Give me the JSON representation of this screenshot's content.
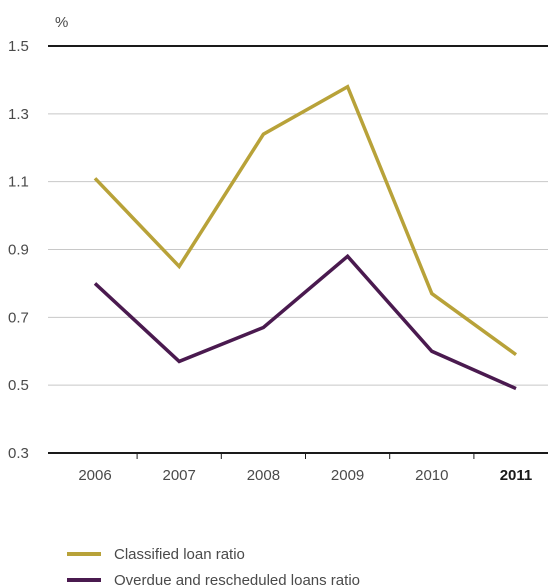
{
  "chart_data": {
    "type": "line",
    "unit_label": "%",
    "categories": [
      "2006",
      "2007",
      "2008",
      "2009",
      "2010",
      "2011"
    ],
    "highlight_category": "2011",
    "y_ticks": [
      "0.3",
      "0.5",
      "0.7",
      "0.9",
      "1.1",
      "1.3",
      "1.5"
    ],
    "ylim": [
      0.3,
      1.5
    ],
    "grid": true,
    "legend_position": "bottom-left",
    "series": [
      {
        "name": "Classified loan ratio",
        "color": "#b8a239",
        "values": [
          1.11,
          0.85,
          1.24,
          1.38,
          0.77,
          0.59
        ]
      },
      {
        "name": "Overdue and rescheduled loans ratio",
        "color": "#4a1a4f",
        "values": [
          0.8,
          0.57,
          0.67,
          0.88,
          0.6,
          0.49
        ]
      }
    ]
  }
}
